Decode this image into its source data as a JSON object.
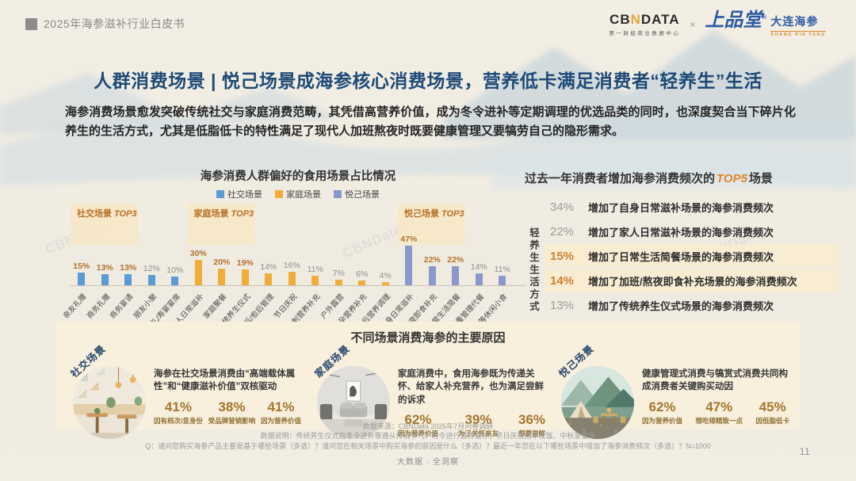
{
  "header": {
    "doc_title": "2025年海参滋补行业白皮书",
    "cbn_logo": {
      "cb": "CB",
      "n": "N",
      "data": "DATA",
      "sub": "第一财经商业数据中心"
    },
    "separator": "×",
    "brand_logo": {
      "script": "上品堂",
      "reg": "®",
      "name": "大连海参",
      "en": "SHANG PIN TANG"
    }
  },
  "page": {
    "title": "人群消费场景 | 悦己场景成海参核心消费场景，营养低卡满足消费者“轻养生”生活",
    "intro": "海参消费场景愈发突破传统社交与家庭消费范畴，其凭借高营养价值，成为冬令进补等定期调理的优选品类的同时，也深度契合当下碎片化养生的生活方式，尤其是低脂低卡的特性满足了现代人加班熬夜时既要健康管理又要犒劳自己的隐形需求。",
    "page_number": "11"
  },
  "chart_data": {
    "type": "bar",
    "title": "海参消费人群偏好的食用场景占比情况",
    "unit": "%",
    "ylim": [
      0,
      50
    ],
    "legend_position": "top",
    "grid": false,
    "top3_word": "TOP3",
    "value_color_top3": "#b4722c",
    "value_color_normal": "#8f8f8f",
    "groups": [
      {
        "name": "社交场景",
        "color": "#5b9bd5",
        "categories": [
          "亲友礼赠",
          "商务礼赠",
          "商务宴请",
          "朋友小聚",
          "婚礼/寿宴宴席"
        ],
        "values": [
          15,
          13,
          13,
          12,
          10
        ]
      },
      {
        "name": "家庭场景",
        "color": "#f0ad3c",
        "categories": [
          "家人日常滋补",
          "家庭聚餐",
          "传统养生仪式",
          "术后/愈后管理",
          "节日庆祝",
          "考试冲刺营养补充",
          "户外露营",
          "备孕营养补充",
          "孕期/产后营养调理"
        ],
        "values": [
          30,
          20,
          19,
          14,
          16,
          11,
          7,
          6,
          4
        ]
      },
      {
        "name": "悦己场景",
        "color": "#8a99c9",
        "categories": [
          "自身日常滋补",
          "加班/熬夜即食补充",
          "日常生活简餐",
          "体重管理代餐",
          "下午茶等休闲小食"
        ],
        "values": [
          47,
          22,
          22,
          14,
          11
        ]
      }
    ]
  },
  "top5": {
    "title_prefix": "过去一年消费者增加海参消费频次的",
    "title_highlight": "TOP5",
    "title_suffix": "场景",
    "side_label": "轻养生生活方式",
    "items": [
      {
        "pct": "34%",
        "text": "增加了自身日常滋补场景的海参消费频次",
        "highlight": false
      },
      {
        "pct": "22%",
        "text": "增加了家人日常滋补场景的海参消费频次",
        "highlight": false
      },
      {
        "pct": "15%",
        "text": "增加了日常生活简餐场景的海参消费频次",
        "highlight": true
      },
      {
        "pct": "14%",
        "text": "增加了加班/熬夜即食补充场景的海参消费频次",
        "highlight": true
      },
      {
        "pct": "13%",
        "text": "增加了传统养生仪式场景的海参消费频次",
        "highlight": false
      }
    ]
  },
  "reasons": {
    "title": "不同场景消费海参的主要原因",
    "cards": [
      {
        "tag": "社交场景",
        "desc": "海参在社交场景消费由“高端载体属性”和“健康滋补价值”双核驱动",
        "stats": [
          {
            "pct": "41%",
            "label": "因有档次/显身份"
          },
          {
            "pct": "38%",
            "label": "受品牌营销影响"
          },
          {
            "pct": "41%",
            "label": "因为营养价值"
          }
        ]
      },
      {
        "tag": "家庭场景",
        "desc": "家庭消费中，食用海参既为传递关怀、给家人补充营养，也为满足尝鲜的诉求",
        "stats": [
          {
            "pct": "62%",
            "label": "因为营养价值"
          },
          {
            "pct": "39%",
            "label": "为了关怀亲友"
          },
          {
            "pct": "36%",
            "label": "想要尝鲜"
          }
        ]
      },
      {
        "tag": "悦己场景",
        "desc": "健康管理式消费与犒赏式消费共同构成消费者关键购买动因",
        "stats": [
          {
            "pct": "62%",
            "label": "因为营养价值"
          },
          {
            "pct": "47%",
            "label": "想吃得精致一点"
          },
          {
            "pct": "45%",
            "label": "因低脂低卡"
          }
        ]
      }
    ]
  },
  "footer": {
    "source": "数据来源：CBNData 2025年7月问卷调研",
    "note": "数据说明：传统养生仪式指冬令进补等遵从传统节气、时令进行营养滋补；节日庆祝指年夜饭、中秋家宴等",
    "question": "Q：请问您购买海参产品主要是基于哪些场景（多选）？请问您在相关场景中购买海参的原因是什么（多选）？最近一年您在以下哪些场景中增加了海参消费频次（多选）？N=1000",
    "brand_line": "大数据 · 全洞察",
    "watermark": "CBNData"
  }
}
